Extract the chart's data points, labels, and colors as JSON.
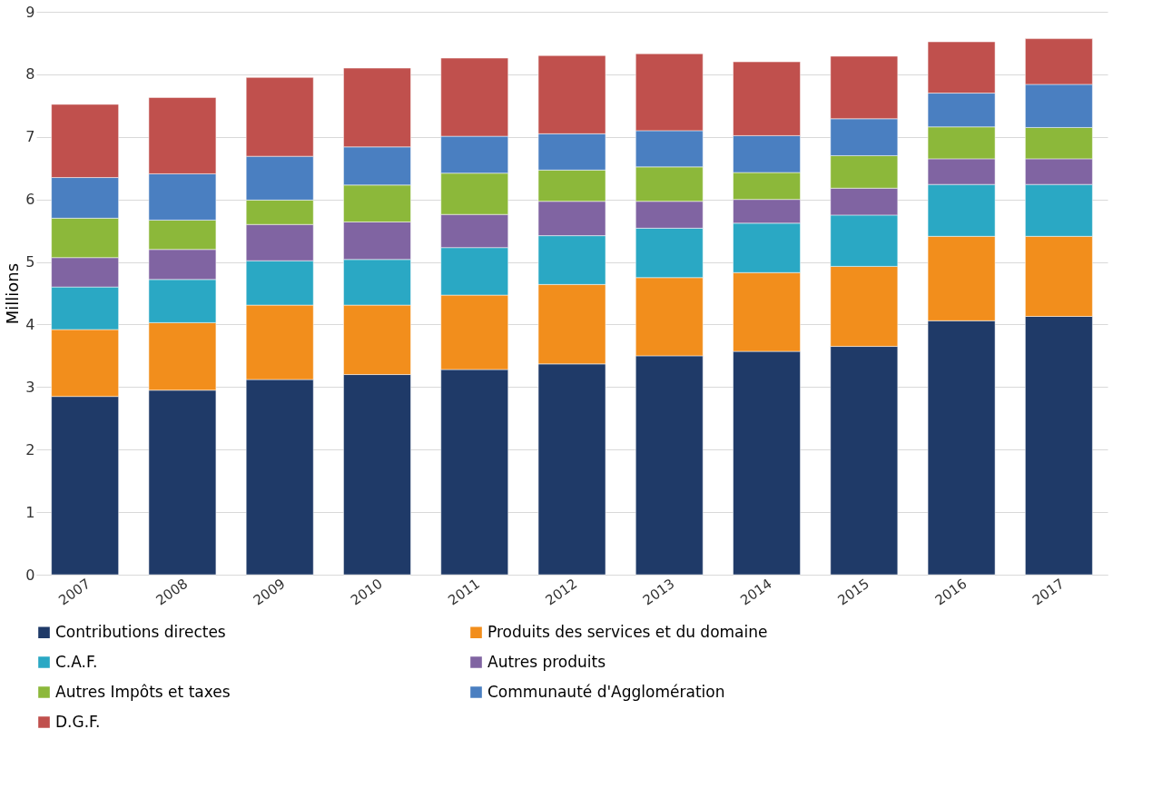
{
  "chart_data": {
    "type": "bar",
    "stacked": true,
    "ylabel": "Millions",
    "categories": [
      "2007",
      "2008",
      "2009",
      "2010",
      "2011",
      "2012",
      "2013",
      "2014",
      "2015",
      "2016",
      "2017"
    ],
    "series": [
      {
        "name": "Contributions directes",
        "color": "#1f3a68",
        "values": [
          2.85,
          2.95,
          3.12,
          3.2,
          3.28,
          3.37,
          3.5,
          3.57,
          3.65,
          4.06,
          4.13
        ]
      },
      {
        "name": "Produits des services et du domaine",
        "color": "#f28e1c",
        "values": [
          1.07,
          1.08,
          1.19,
          1.11,
          1.19,
          1.27,
          1.25,
          1.26,
          1.28,
          1.35,
          1.28
        ]
      },
      {
        "name": "C.A.F.",
        "color": "#2aa8c4",
        "values": [
          0.68,
          0.69,
          0.71,
          0.73,
          0.76,
          0.78,
          0.79,
          0.79,
          0.82,
          0.83,
          0.83
        ]
      },
      {
        "name": "Autres produits",
        "color": "#8064a2",
        "values": [
          0.47,
          0.48,
          0.58,
          0.6,
          0.53,
          0.55,
          0.43,
          0.38,
          0.43,
          0.41,
          0.41
        ]
      },
      {
        "name": "Autres Impôts et taxes",
        "color": "#8cb83a",
        "values": [
          0.63,
          0.47,
          0.39,
          0.59,
          0.66,
          0.5,
          0.55,
          0.43,
          0.52,
          0.51,
          0.5
        ]
      },
      {
        "name": "Communauté d'Agglomération",
        "color": "#4a7fc1",
        "values": [
          0.65,
          0.74,
          0.7,
          0.61,
          0.59,
          0.58,
          0.58,
          0.59,
          0.59,
          0.54,
          0.69
        ]
      },
      {
        "name": "D.G.F.",
        "color": "#c0504d",
        "values": [
          1.17,
          1.22,
          1.26,
          1.26,
          1.25,
          1.25,
          1.23,
          1.18,
          1.0,
          0.82,
          0.73
        ]
      }
    ],
    "ylim": [
      0,
      9
    ],
    "yticks": [
      0,
      1,
      2,
      3,
      4,
      5,
      6,
      7,
      8,
      9
    ],
    "grid": "y",
    "legend": "bottom"
  }
}
